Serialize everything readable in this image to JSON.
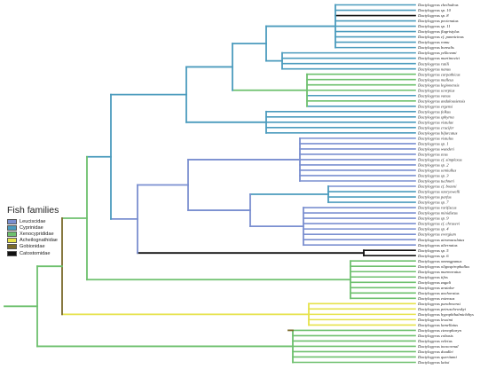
{
  "legend": {
    "title": "Fish families",
    "items": [
      {
        "label": "Leuciscidae",
        "color": "#7a8fd0"
      },
      {
        "label": "Cyprinidae",
        "color": "#4b9bbd"
      },
      {
        "label": "Xenocyprididae",
        "color": "#6ec06e"
      },
      {
        "label": "Acheilognathidae",
        "color": "#e6e24a"
      },
      {
        "label": "Gobionidae",
        "color": "#7a6a2a"
      },
      {
        "label": "Catostomidae",
        "color": "#111111"
      }
    ]
  },
  "taxa": [
    {
      "name": "Dactylogyrus cheilodeus",
      "color": "#4b9bbd"
    },
    {
      "name": "Dactylogyrus sp. 10",
      "color": "#4b9bbd"
    },
    {
      "name": "Dactylogyrus sp. 8",
      "color": "#111111"
    },
    {
      "name": "Dactylogyrus pectenatus",
      "color": "#4b9bbd"
    },
    {
      "name": "Dactylogyrus sp. 11",
      "color": "#4b9bbd"
    },
    {
      "name": "Dactylogyrus flagristylus",
      "color": "#4b9bbd"
    },
    {
      "name": "Dactylogyrus cf. pannicinus",
      "color": "#4b9bbd"
    },
    {
      "name": "Dactylogyrus romu",
      "color": "#4b9bbd"
    },
    {
      "name": "Dactylogyrus borealis",
      "color": "#4b9bbd"
    },
    {
      "name": "Dactylogyrus yelkovani",
      "color": "#4b9bbd"
    },
    {
      "name": "Dactylogyrus martinovici",
      "color": "#4b9bbd"
    },
    {
      "name": "Dactylogyrus rutili",
      "color": "#4b9bbd"
    },
    {
      "name": "Dactylogyrus nanus",
      "color": "#4b9bbd"
    },
    {
      "name": "Dactylogyrus carpathicus",
      "color": "#6ec06e"
    },
    {
      "name": "Dactylogyrus malleus",
      "color": "#6ec06e"
    },
    {
      "name": "Dactylogyrus legionensis",
      "color": "#6ec06e"
    },
    {
      "name": "Dactylogyrus scorpius",
      "color": "#6ec06e"
    },
    {
      "name": "Dactylogyrus vanus",
      "color": "#4b9bbd"
    },
    {
      "name": "Dactylogyrus andalousiensis",
      "color": "#6ec06e"
    },
    {
      "name": "Dactylogyrus ergensi",
      "color": "#4b9bbd"
    },
    {
      "name": "Dactylogyrus folkus",
      "color": "#4b9bbd"
    },
    {
      "name": "Dactylogyrus sphyrna",
      "color": "#4b9bbd"
    },
    {
      "name": "Dactylogyrus vistulae",
      "color": "#4b9bbd"
    },
    {
      "name": "Dactylogyrus crucifer",
      "color": "#4b9bbd"
    },
    {
      "name": "Dactylogyrus bifurcatus",
      "color": "#4b9bbd"
    },
    {
      "name": "Dactylogyrus vistulus",
      "color": "#7a8fd0"
    },
    {
      "name": "Dactylogyrus sp. 1",
      "color": "#7a8fd0"
    },
    {
      "name": "Dactylogyrus wunderi",
      "color": "#7a8fd0"
    },
    {
      "name": "Dactylogyrus zeus",
      "color": "#7a8fd0"
    },
    {
      "name": "Dactylogyrus cf. simplexus",
      "color": "#7a8fd0"
    },
    {
      "name": "Dactylogyrus sp. 2",
      "color": "#7a8fd0"
    },
    {
      "name": "Dactylogyrus semiullus",
      "color": "#7a8fd0"
    },
    {
      "name": "Dactylogyrus sp. 3",
      "color": "#7a8fd0"
    },
    {
      "name": "Dactylogyrus tuchneri",
      "color": "#7a8fd0"
    },
    {
      "name": "Dactylogyrus cf. bozeni",
      "color": "#7a8fd0"
    },
    {
      "name": "Dactylogyrus ozoryowelli",
      "color": "#4b9bbd"
    },
    {
      "name": "Dactylogyrus parfus",
      "color": "#4b9bbd"
    },
    {
      "name": "Dactylogyrus sp. 7",
      "color": "#4b9bbd"
    },
    {
      "name": "Dactylogyrus rarifiscus",
      "color": "#7a8fd0"
    },
    {
      "name": "Dactylogyrus minidistus",
      "color": "#7a8fd0"
    },
    {
      "name": "Dactylogyrus sp. 9",
      "color": "#7a8fd0"
    },
    {
      "name": "Dactylogyrus cf. chrusevi",
      "color": "#7a8fd0"
    },
    {
      "name": "Dactylogyrus sp. 4",
      "color": "#7a8fd0"
    },
    {
      "name": "Dactylogyrus evergium",
      "color": "#7a8fd0"
    },
    {
      "name": "Dactylogyrus atromaculatus",
      "color": "#7a8fd0"
    },
    {
      "name": "Dactylogyrus alternatus",
      "color": "#7a8fd0"
    },
    {
      "name": "Dactylogyrus sp. 5",
      "color": "#111111"
    },
    {
      "name": "Dactylogyrus sp. 6",
      "color": "#111111"
    },
    {
      "name": "Dactylogyrus omnogpanus",
      "color": "#6ec06e"
    },
    {
      "name": "Dactylogyrus oligospirophallus",
      "color": "#6ec06e"
    },
    {
      "name": "Dactylogyrus marmoratus",
      "color": "#6ec06e"
    },
    {
      "name": "Dactylogyrus tifos",
      "color": "#6ec06e"
    },
    {
      "name": "Dactylogyrus zagali",
      "color": "#6ec06e"
    },
    {
      "name": "Dactylogyrus aratalor",
      "color": "#6ec06e"
    },
    {
      "name": "Dactylogyrus anchoratus",
      "color": "#6ec06e"
    },
    {
      "name": "Dactylogyrus extensus",
      "color": "#6ec06e"
    },
    {
      "name": "Dactylogyrus parabrsensi",
      "color": "#e6e24a"
    },
    {
      "name": "Dactylogyrus petruschewskyi",
      "color": "#e6e24a"
    },
    {
      "name": "Dactylogyrus hypophthalmichthys",
      "color": "#e6e24a"
    },
    {
      "name": "Dactylogyrus lesoimi",
      "color": "#e6e24a"
    },
    {
      "name": "Dactylogyrus lamellatus",
      "color": "#e6e24a"
    },
    {
      "name": "Dactylogyrus ctenopharyn",
      "color": "#6ec06e"
    },
    {
      "name": "Dactylogyrus cobusis",
      "color": "#6ec06e"
    },
    {
      "name": "Dactylogyrus veletus",
      "color": "#6ec06e"
    },
    {
      "name": "Dactylogyrus inexcornal",
      "color": "#6ec06e"
    },
    {
      "name": "Dactylogyrus doadlei",
      "color": "#6ec06e"
    },
    {
      "name": "Dactylogyrus queritami",
      "color": "#6ec06e"
    },
    {
      "name": "Dactylogyrus latixi",
      "color": "#6ec06e"
    }
  ]
}
